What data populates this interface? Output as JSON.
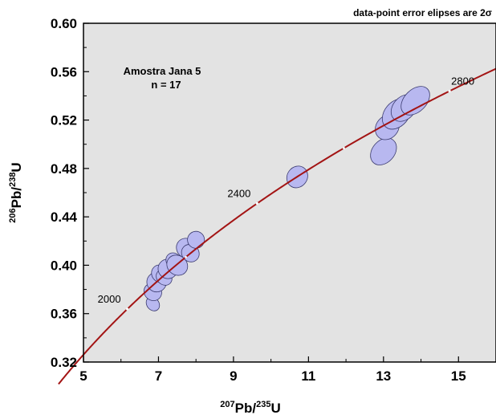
{
  "chart_data": {
    "type": "scatter",
    "subtype": "U-Pb concordia diagram",
    "note": "data-point error elipses are 2σ",
    "sample_label": "Amostra Jana 5",
    "sample_count": "n = 17",
    "xlabel": {
      "iso": "207",
      "rest": "Pb/",
      "iso2": "235",
      "end": "U"
    },
    "ylabel": {
      "iso": "206",
      "rest": "Pb/",
      "iso2": "238",
      "end": "U"
    },
    "xlim": [
      5,
      16
    ],
    "ylim": [
      0.32,
      0.6
    ],
    "xticks": [
      5,
      7,
      9,
      11,
      13,
      15
    ],
    "xtick_labels": [
      "5",
      "7",
      "9",
      "11",
      "13",
      "15"
    ],
    "yticks": [
      0.32,
      0.36,
      0.4,
      0.44,
      0.48,
      0.52,
      0.56,
      0.6
    ],
    "ytick_labels": [
      "0.32",
      "0.36",
      "0.40",
      "0.44",
      "0.48",
      "0.52",
      "0.56",
      "0.60"
    ],
    "grid": false,
    "background_color": "#e3e3e3",
    "curve_color": "#a31414",
    "ellipse_fill": "#b8b8f0",
    "ellipse_stroke": "#3a3a6e",
    "concordia_age_range_ma": [
      1700,
      3100
    ],
    "age_labels": [
      {
        "age_ma": 2000,
        "text": "2000"
      },
      {
        "age_ma": 2400,
        "text": "2400"
      },
      {
        "age_ma": 2800,
        "text": "2800"
      }
    ],
    "ellipses": [
      {
        "x": 6.85,
        "y": 0.368,
        "rx": 0.15,
        "ry": 0.005,
        "angle": 40
      },
      {
        "x": 6.85,
        "y": 0.378,
        "rx": 0.2,
        "ry": 0.007,
        "angle": 48
      },
      {
        "x": 6.95,
        "y": 0.386,
        "rx": 0.22,
        "ry": 0.008,
        "angle": 50
      },
      {
        "x": 7.05,
        "y": 0.393,
        "rx": 0.2,
        "ry": 0.007,
        "angle": 48
      },
      {
        "x": 7.15,
        "y": 0.39,
        "rx": 0.18,
        "ry": 0.006,
        "angle": 45
      },
      {
        "x": 7.25,
        "y": 0.397,
        "rx": 0.22,
        "ry": 0.008,
        "angle": 50
      },
      {
        "x": 7.4,
        "y": 0.404,
        "rx": 0.16,
        "ry": 0.006,
        "angle": 45
      },
      {
        "x": 7.5,
        "y": 0.4,
        "rx": 0.25,
        "ry": 0.008,
        "angle": 52
      },
      {
        "x": 7.75,
        "y": 0.414,
        "rx": 0.24,
        "ry": 0.008,
        "angle": 52
      },
      {
        "x": 7.85,
        "y": 0.41,
        "rx": 0.2,
        "ry": 0.007,
        "angle": 48
      },
      {
        "x": 8.0,
        "y": 0.421,
        "rx": 0.18,
        "ry": 0.007,
        "angle": 52
      },
      {
        "x": 10.7,
        "y": 0.473,
        "rx": 0.3,
        "ry": 0.007,
        "angle": 54
      },
      {
        "x": 13.0,
        "y": 0.494,
        "rx": 0.4,
        "ry": 0.008,
        "angle": 48
      },
      {
        "x": 13.1,
        "y": 0.514,
        "rx": 0.35,
        "ry": 0.008,
        "angle": 50
      },
      {
        "x": 13.35,
        "y": 0.525,
        "rx": 0.45,
        "ry": 0.009,
        "angle": 50
      },
      {
        "x": 13.55,
        "y": 0.53,
        "rx": 0.4,
        "ry": 0.008,
        "angle": 48
      },
      {
        "x": 13.85,
        "y": 0.536,
        "rx": 0.45,
        "ry": 0.008,
        "angle": 45
      }
    ]
  }
}
